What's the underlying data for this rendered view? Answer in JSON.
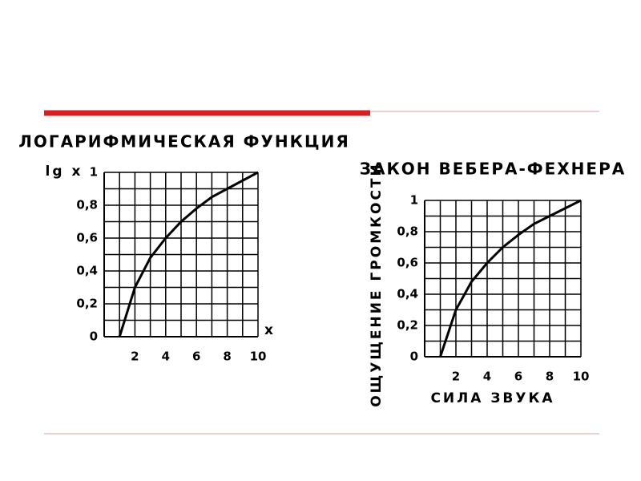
{
  "chart_data": [
    {
      "type": "line",
      "title": "ЛОГАРИФМИЧЕСКАЯ ФУНКЦИЯ",
      "y_label": "lg x",
      "x_label": "x",
      "x": [
        1,
        2,
        3,
        4,
        5,
        6,
        7,
        8,
        9,
        10
      ],
      "values": [
        0,
        0.3,
        0.48,
        0.6,
        0.7,
        0.78,
        0.85,
        0.9,
        0.95,
        1
      ],
      "color": "#000000",
      "grid": true,
      "xlim": [
        0,
        10
      ],
      "xticks": [
        2,
        4,
        6,
        8,
        10
      ],
      "ylim": [
        0,
        1
      ],
      "yticks": [
        0,
        {
          "value": 0.2,
          "label": "0,2"
        },
        {
          "value": 0.4,
          "label": "0,4"
        },
        {
          "value": 0.6,
          "label": "0,6"
        },
        {
          "value": 0.8,
          "label": "0,8"
        },
        1
      ]
    },
    {
      "type": "line",
      "title": "ЗАКОН ВЕБЕРА-ФЕХНЕРА",
      "y_label": "ОЩУЩЕНИЕ ГРОМКОСТИ",
      "x_label": "СИЛА ЗВУКА",
      "x": [
        1,
        2,
        3,
        4,
        5,
        6,
        7,
        8,
        9,
        10
      ],
      "values": [
        0,
        0.3,
        0.48,
        0.6,
        0.7,
        0.78,
        0.85,
        0.9,
        0.95,
        1
      ],
      "color": "#000000",
      "grid": true,
      "xlim": [
        0,
        10
      ],
      "xticks": [
        2,
        4,
        6,
        8,
        10
      ],
      "ylim": [
        0,
        1
      ],
      "yticks": [
        0,
        {
          "value": 0.2,
          "label": "0,2"
        },
        {
          "value": 0.4,
          "label": "0,4"
        },
        {
          "value": 0.6,
          "label": "0,6"
        },
        {
          "value": 0.8,
          "label": "0,8"
        },
        1
      ]
    }
  ]
}
